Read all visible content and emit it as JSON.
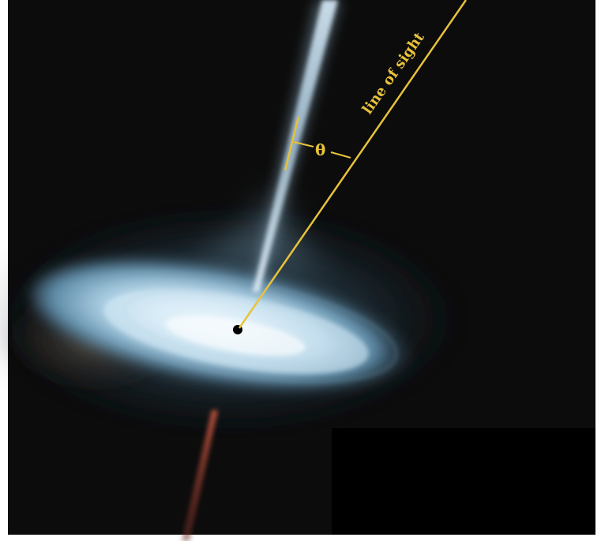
{
  "labels": {
    "line_of_sight": "line of sight",
    "angle": "θ"
  },
  "colors": {
    "background": "#0c0c0c",
    "frame": "#ffffff",
    "annotation": "#e8c23a",
    "disk_core": "#f4fbff",
    "disk_mid": "#a9cde2",
    "disk_edge": "#4f7f9c",
    "jet_upper": "#bcd6e8",
    "jet_lower": "#b34535",
    "black_hole": "#000000"
  }
}
